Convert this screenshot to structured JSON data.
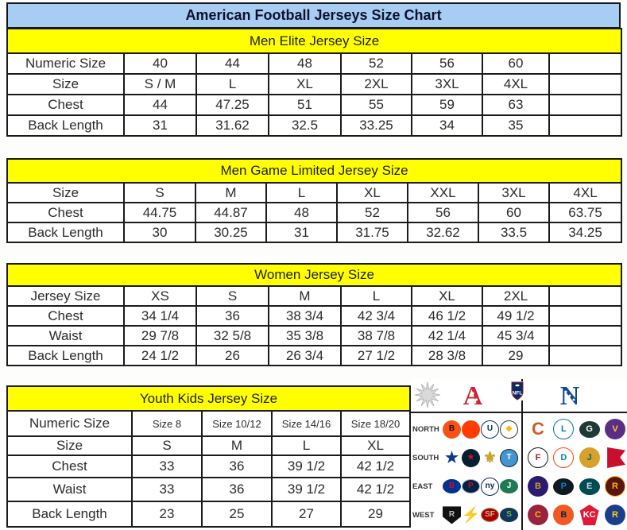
{
  "title": "American Football Jerseys Size Chart",
  "colors": {
    "title_bg": "#a7cdf2",
    "title_text": "#10102e",
    "section_band": "#ffff00",
    "border": "#1b1b1b",
    "afc_red": "#cf2233",
    "nfc_blue": "#0d4a8f"
  },
  "tables": {
    "men_elite": {
      "header": "Men Elite Jersey Size",
      "rows": [
        {
          "label": "Numeric Size",
          "values": [
            "40",
            "44",
            "48",
            "52",
            "56",
            "60",
            ""
          ]
        },
        {
          "label": "Size",
          "values": [
            "S / M",
            "L",
            "XL",
            "2XL",
            "3XL",
            "4XL",
            ""
          ]
        },
        {
          "label": "Chest",
          "values": [
            "44",
            "47.25",
            "51",
            "55",
            "59",
            "63",
            ""
          ]
        },
        {
          "label": "Back Length",
          "values": [
            "31",
            "31.62",
            "32.5",
            "33.25",
            "34",
            "35",
            ""
          ]
        }
      ]
    },
    "men_game": {
      "header": "Men Game Limited Jersey Size",
      "rows": [
        {
          "label": "Size",
          "values": [
            "S",
            "M",
            "L",
            "XL",
            "XXL",
            "3XL",
            "4XL"
          ]
        },
        {
          "label": "Chest",
          "values": [
            "44.75",
            "44.87",
            "48",
            "52",
            "56",
            "60",
            "63.75"
          ]
        },
        {
          "label": "Back Length",
          "values": [
            "30",
            "30.25",
            "31",
            "31.75",
            "32.62",
            "33.5",
            "34.25"
          ]
        }
      ]
    },
    "women": {
      "header": "Women Jersey Size",
      "rows": [
        {
          "label": "Jersey Size",
          "values": [
            "XS",
            "S",
            "M",
            "L",
            "XL",
            "2XL",
            ""
          ]
        },
        {
          "label": "Chest",
          "values": [
            "34 1/4",
            "36",
            "38 3/4",
            "42 3/4",
            "46 1/2",
            "49 1/2",
            ""
          ]
        },
        {
          "label": "Waist",
          "values": [
            "29 7/8",
            "32 5/8",
            "35 3/8",
            "38 7/8",
            "42 1/4",
            "45 3/4",
            ""
          ]
        },
        {
          "label": "Back Length",
          "values": [
            "24 1/2",
            "26",
            "26 3/4",
            "27 1/2",
            "28 3/8",
            "29",
            ""
          ]
        }
      ]
    },
    "youth": {
      "header": "Youth Kids Jersey Size",
      "rows": [
        {
          "label": "Numeric Size",
          "values": [
            "Size 8",
            "Size 10/12",
            "Size 14/16",
            "Size 18/20"
          ]
        },
        {
          "label": "Size",
          "values": [
            "S",
            "M",
            "L",
            "XL"
          ]
        },
        {
          "label": "Chest",
          "values": [
            "33",
            "36",
            "39 1/2",
            "42 1/2"
          ]
        },
        {
          "label": "Waist",
          "values": [
            "33",
            "36",
            "39 1/2",
            "42 1/2"
          ]
        },
        {
          "label": "Back Length",
          "values": [
            "23",
            "25",
            "27",
            "29"
          ]
        }
      ]
    }
  },
  "nfl": {
    "afc_label": "A",
    "nfc_label": "N",
    "shield_text": "NFL",
    "header_icons": [
      "starburst-icon",
      "afc-logo",
      "nfl-shield-icon",
      "nfc-logo"
    ],
    "rows": [
      {
        "region": "NORTH",
        "afc": [
          {
            "id": "bengals",
            "name": "Bengals",
            "abbr": "B",
            "bg": "#fb4f14",
            "fg": "#111111",
            "shape": "circle"
          },
          {
            "id": "browns",
            "name": "Browns",
            "abbr": "",
            "bg": "#ff3c00",
            "fg": "#ffffff",
            "shape": "circle"
          },
          {
            "id": "colts",
            "name": "Colts",
            "abbr": "U",
            "bg": "#ffffff",
            "fg": "#013369",
            "shape": "circle",
            "border": "#013369"
          },
          {
            "id": "steelers",
            "name": "Steelers",
            "abbr": "◆",
            "bg": "#ffffff",
            "fg": "#ffb612",
            "shape": "circle",
            "border": "#333333"
          }
        ],
        "nfc": [
          {
            "id": "bears",
            "name": "Bears",
            "abbr": "C",
            "bg": "transparent",
            "fg": "#d25a2a",
            "shape": "glyph"
          },
          {
            "id": "lions",
            "name": "Lions",
            "abbr": "L",
            "bg": "#ffffff",
            "fg": "#0076b6",
            "shape": "circle",
            "border": "#0076b6"
          },
          {
            "id": "packers",
            "name": "Packers",
            "abbr": "G",
            "bg": "#1e3a34",
            "fg": "#ffffff",
            "shape": "oval"
          },
          {
            "id": "vikings",
            "name": "Vikings",
            "abbr": "V",
            "bg": "#5a2d87",
            "fg": "#ffc62f",
            "shape": "circle"
          }
        ]
      },
      {
        "region": "SOUTH",
        "afc": [
          {
            "id": "cowboys",
            "name": "Cowboys",
            "abbr": "★",
            "bg": "transparent",
            "fg": "#0d3b8c",
            "shape": "glyph"
          },
          {
            "id": "texans",
            "name": "Texans",
            "abbr": "★",
            "bg": "#03202f",
            "fg": "#c41230",
            "shape": "circle"
          },
          {
            "id": "saints",
            "name": "Saints",
            "abbr": "⚜",
            "bg": "transparent",
            "fg": "#c9a227",
            "shape": "glyph"
          },
          {
            "id": "titans",
            "name": "Titans",
            "abbr": "T",
            "bg": "#4495d1",
            "fg": "#ffffff",
            "shape": "circle",
            "border": "#0c2340"
          }
        ],
        "nfc": [
          {
            "id": "falcons",
            "name": "Falcons",
            "abbr": "F",
            "bg": "#ffffff",
            "fg": "#a71930",
            "shape": "circle",
            "border": "#101820"
          },
          {
            "id": "dolphins",
            "name": "Dolphins",
            "abbr": "D",
            "bg": "#ffffff",
            "fg": "#008e97",
            "shape": "circle",
            "border": "#fc4c02"
          },
          {
            "id": "jaguars",
            "name": "Jaguars",
            "abbr": "J",
            "bg": "#d7a22a",
            "fg": "#006778",
            "shape": "circle"
          },
          {
            "id": "buccaneers",
            "name": "Buccaneers",
            "abbr": "",
            "bg": "#c8102e",
            "fg": "#ffffff",
            "shape": "flag"
          }
        ]
      },
      {
        "region": "EAST",
        "afc": [
          {
            "id": "bills",
            "name": "Bills",
            "abbr": "B",
            "bg": "#00338d",
            "fg": "#c60c30",
            "shape": "oval"
          },
          {
            "id": "patriots",
            "name": "Patriots",
            "abbr": "P",
            "bg": "#002244",
            "fg": "#c60c30",
            "shape": "oval",
            "border": "#b0b7bc"
          },
          {
            "id": "giants",
            "name": "Giants",
            "abbr": "ny",
            "bg": "#ffffff",
            "fg": "#0b2265",
            "shape": "circle",
            "border": "#0b2265"
          },
          {
            "id": "jets",
            "name": "Jets",
            "abbr": "J",
            "bg": "#1e7a52",
            "fg": "#ffffff",
            "shape": "oval"
          }
        ],
        "nfc": [
          {
            "id": "ravens",
            "name": "Ravens",
            "abbr": "B",
            "bg": "#2a1a70",
            "fg": "#c9a227",
            "shape": "circle"
          },
          {
            "id": "panthers",
            "name": "Panthers",
            "abbr": "P",
            "bg": "#101820",
            "fg": "#0085ca",
            "shape": "oval"
          },
          {
            "id": "eagles",
            "name": "Eagles",
            "abbr": "E",
            "bg": "#004c54",
            "fg": "#cfd6d8",
            "shape": "oval"
          },
          {
            "id": "redskins",
            "name": "Redskins",
            "abbr": "R",
            "bg": "#5a1414",
            "fg": "#ffb612",
            "shape": "circle",
            "border": "#ffb612"
          }
        ]
      },
      {
        "region": "WEST",
        "afc": [
          {
            "id": "raiders",
            "name": "Raiders",
            "abbr": "R",
            "bg": "#111111",
            "fg": "#bdc1c4",
            "shape": "shield"
          },
          {
            "id": "chargers",
            "name": "Chargers",
            "abbr": "⚡",
            "bg": "transparent",
            "fg": "#f2b705",
            "shape": "glyph"
          },
          {
            "id": "niners",
            "name": "49ers",
            "abbr": "SF",
            "bg": "#aa0000",
            "fg": "#cdb487",
            "shape": "oval",
            "border": "#b3995d"
          },
          {
            "id": "seahawks",
            "name": "Seahawks",
            "abbr": "S",
            "bg": "#12355f",
            "fg": "#69be28",
            "shape": "oval"
          }
        ],
        "nfc": [
          {
            "id": "cardinals",
            "name": "Cardinals",
            "abbr": "C",
            "bg": "#97233f",
            "fg": "#ffb612",
            "shape": "circle"
          },
          {
            "id": "broncos",
            "name": "Broncos",
            "abbr": "B",
            "bg": "#f05a22",
            "fg": "#0a2343",
            "shape": "circle"
          },
          {
            "id": "chiefs",
            "name": "Chiefs",
            "abbr": "KC",
            "bg": "#e31837",
            "fg": "#ffffff",
            "shape": "arrow"
          },
          {
            "id": "rams",
            "name": "Rams",
            "abbr": "R",
            "bg": "#1a3e8f",
            "fg": "#ffd100",
            "shape": "circle"
          }
        ]
      }
    ]
  }
}
